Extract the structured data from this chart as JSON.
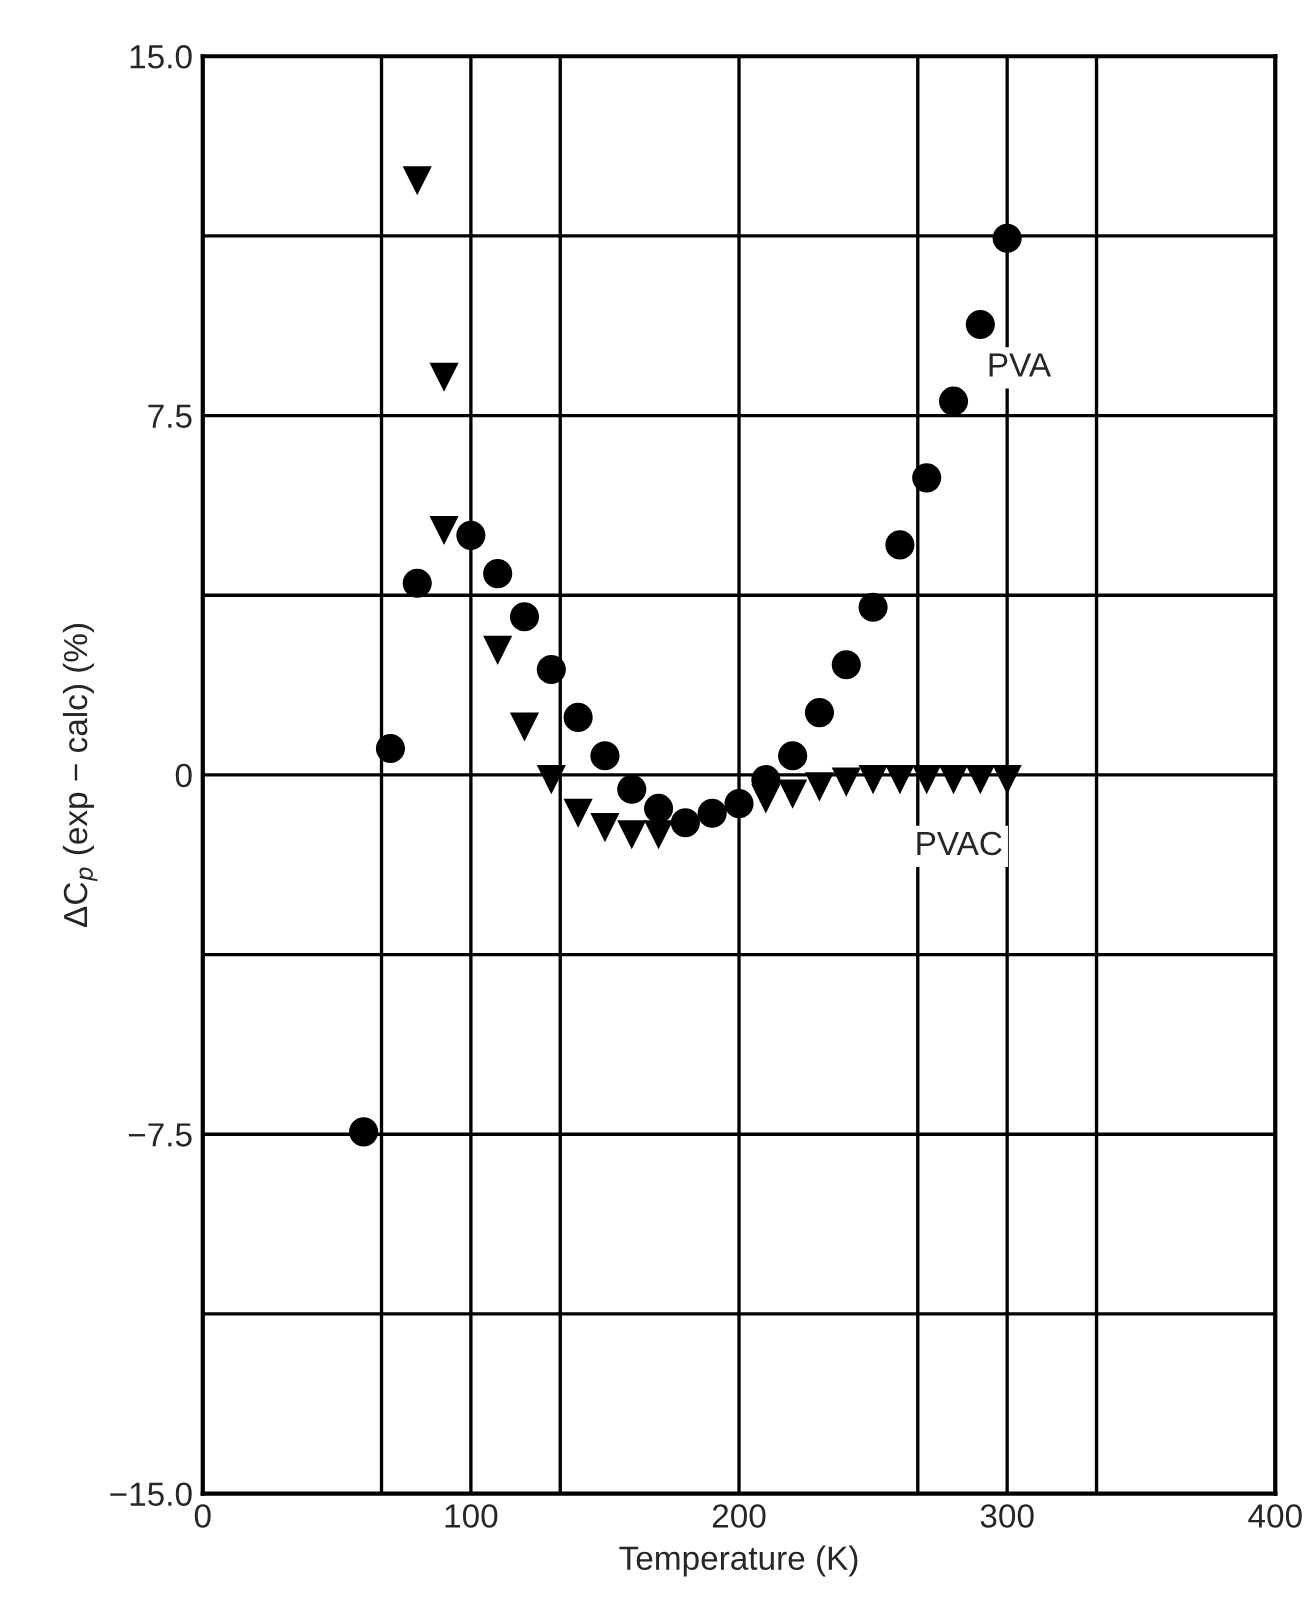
{
  "chart_data": {
    "type": "scatter",
    "xlabel": "Temperature (K)",
    "ylabel": "ΔC$_{p}$ (exp − calc) (%)",
    "xlim": [
      0,
      400
    ],
    "ylim": [
      -15,
      15
    ],
    "xticks": [
      0,
      {
        "value": 66.67,
        "label": null
      },
      100,
      {
        "value": 133.33,
        "label": null
      },
      200,
      {
        "value": 266.67,
        "label": null
      },
      300,
      {
        "value": 333.33,
        "label": null
      },
      400
    ],
    "yticks": [
      {
        "value": -15,
        "label": "−15.0"
      },
      {
        "value": -11.25,
        "label": null
      },
      {
        "value": -7.5,
        "label": "−7.5"
      },
      {
        "value": -3.75,
        "label": null
      },
      0,
      {
        "value": 3.75,
        "label": null
      },
      7.5,
      {
        "value": 11.25,
        "label": null
      },
      {
        "value": 15,
        "label": "15.0"
      }
    ],
    "grid": true,
    "legend": false,
    "series": [
      {
        "name": "PVA",
        "color": "#000000",
        "marker": "circle",
        "x": [
          60,
          70,
          80,
          100,
          110,
          120,
          130,
          140,
          150,
          160,
          170,
          180,
          190,
          200,
          210,
          220,
          230,
          240,
          250,
          260,
          270,
          280,
          290,
          300
        ],
        "values": [
          -7.45,
          0.55,
          4.0,
          5.0,
          4.2,
          3.3,
          2.2,
          1.2,
          0.4,
          -0.3,
          -0.7,
          -1.0,
          -0.8,
          -0.6,
          -0.1,
          0.4,
          1.3,
          2.3,
          3.5,
          4.8,
          6.2,
          7.8,
          9.4,
          11.2
        ]
      },
      {
        "name": "PVAC",
        "color": "#000000",
        "marker": "triangle",
        "x": [
          80,
          90,
          90,
          110,
          120,
          130,
          140,
          150,
          160,
          170,
          210,
          220,
          230,
          240,
          250,
          260,
          270,
          280,
          290,
          300
        ],
        "values": [
          12.4,
          8.3,
          5.1,
          2.6,
          1.0,
          -0.1,
          -0.8,
          -1.1,
          -1.25,
          -1.25,
          -0.5,
          -0.4,
          -0.25,
          -0.15,
          -0.1,
          -0.1,
          -0.1,
          -0.1,
          -0.1,
          -0.1
        ]
      }
    ]
  }
}
